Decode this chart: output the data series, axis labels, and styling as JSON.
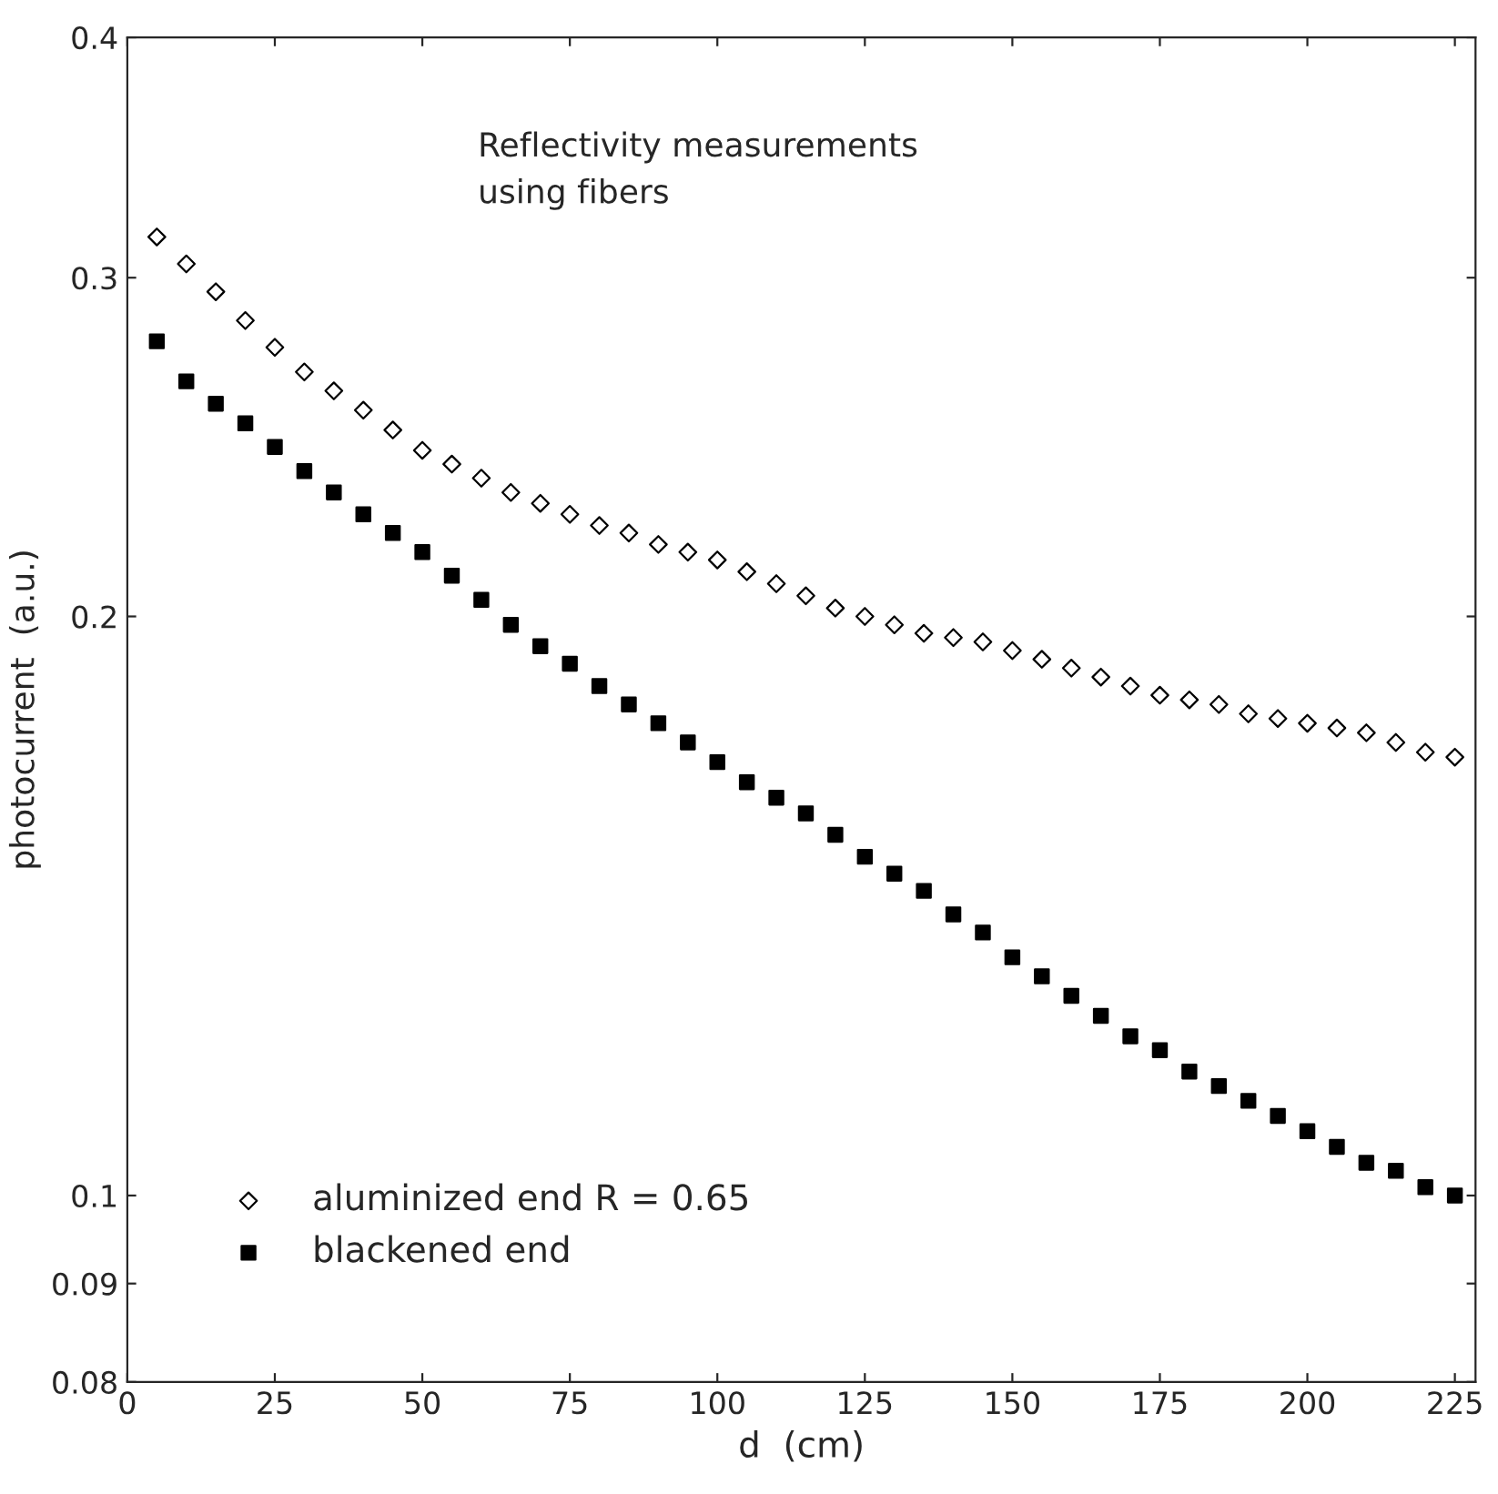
{
  "chart_data": {
    "type": "scatter",
    "xlabel": "d  (cm)",
    "ylabel": "photocurrent  (a.u.)",
    "annotations": [
      "Reflectivity measurements\nusing fibers"
    ],
    "x": [
      5,
      10,
      15,
      20,
      25,
      30,
      35,
      40,
      45,
      50,
      55,
      60,
      65,
      70,
      75,
      80,
      85,
      90,
      95,
      100,
      105,
      110,
      115,
      120,
      125,
      130,
      135,
      140,
      145,
      150,
      155,
      160,
      165,
      170,
      175,
      180,
      185,
      190,
      195,
      200,
      205,
      210,
      215,
      220,
      225
    ],
    "series": [
      {
        "name": "aluminized end R = 0.65",
        "color": "#000000",
        "marker": "diamond",
        "values": [
          0.315,
          0.305,
          0.295,
          0.285,
          0.276,
          0.268,
          0.262,
          0.256,
          0.25,
          0.244,
          0.24,
          0.236,
          0.232,
          0.229,
          0.226,
          0.223,
          0.221,
          0.218,
          0.216,
          0.214,
          0.211,
          0.208,
          0.205,
          0.202,
          0.2,
          0.198,
          0.196,
          0.195,
          0.194,
          0.192,
          0.19,
          0.188,
          0.186,
          0.184,
          0.182,
          0.181,
          0.18,
          0.178,
          0.177,
          0.176,
          0.175,
          0.174,
          0.172,
          0.17,
          0.169
        ]
      },
      {
        "name": "blackened end",
        "color": "#000000",
        "marker": "square",
        "values": [
          0.278,
          0.265,
          0.258,
          0.252,
          0.245,
          0.238,
          0.232,
          0.226,
          0.221,
          0.216,
          0.21,
          0.204,
          0.198,
          0.193,
          0.189,
          0.184,
          0.18,
          0.176,
          0.172,
          0.168,
          0.164,
          0.161,
          0.158,
          0.154,
          0.15,
          0.147,
          0.144,
          0.14,
          0.137,
          0.133,
          0.13,
          0.127,
          0.124,
          0.121,
          0.119,
          0.116,
          0.114,
          0.112,
          0.11,
          0.108,
          0.106,
          0.104,
          0.103,
          0.101,
          0.1
        ]
      }
    ],
    "log": "y",
    "xlim": [
      0,
      228.5
    ],
    "xticks": [
      0,
      25,
      50,
      75,
      100,
      125,
      150,
      175,
      200,
      225
    ],
    "ylim": [
      0.08,
      0.4
    ],
    "yticks": [
      0.08,
      0.09,
      0.1,
      0.2,
      0.3,
      0.4
    ],
    "grid": false,
    "legend": "bottom left"
  }
}
